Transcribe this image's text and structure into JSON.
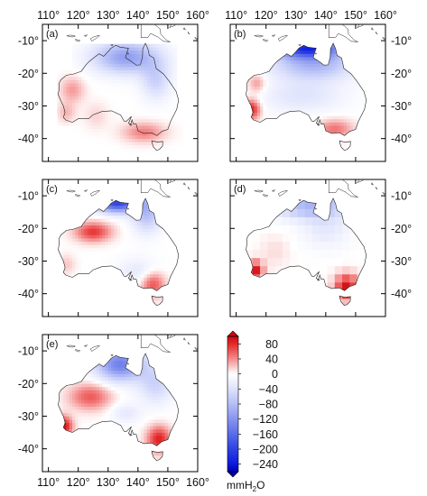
{
  "figure": {
    "lon_ticks": [
      "110°",
      "120°",
      "130°",
      "140°",
      "150°",
      "160°"
    ],
    "lat_ticks": [
      "-10°",
      "-20°",
      "-30°",
      "-40°"
    ],
    "lon_values": [
      110,
      120,
      130,
      140,
      150,
      160
    ],
    "lat_values": [
      -10,
      -20,
      -30,
      -40
    ],
    "lon_range": [
      108,
      160
    ],
    "lat_range": [
      -47,
      -5
    ],
    "panels": [
      {
        "label": "(a)",
        "pattern": "smooth_a",
        "extended": true
      },
      {
        "label": "(b)",
        "pattern": "smooth_b",
        "extended": false
      },
      {
        "label": "(c)",
        "pattern": "smooth_c",
        "extended": false
      },
      {
        "label": "(d)",
        "pattern": "blocky_d",
        "extended": false
      },
      {
        "label": "(e)",
        "pattern": "smooth_e",
        "extended": false
      }
    ]
  },
  "colorbar": {
    "unit_main": "mmH",
    "unit_sub": "2",
    "unit_tail": "O",
    "tick_labels": [
      "80",
      "40",
      "0",
      "−40",
      "−80",
      "−120",
      "−160",
      "−200",
      "−240"
    ],
    "tick_values": [
      80,
      40,
      0,
      -40,
      -80,
      -120,
      -160,
      -200,
      -240
    ],
    "range": [
      -260,
      100
    ],
    "colors": {
      "max_red": "#d7191c",
      "mid": "#ffffff",
      "min_blue": "#0000ee"
    }
  }
}
